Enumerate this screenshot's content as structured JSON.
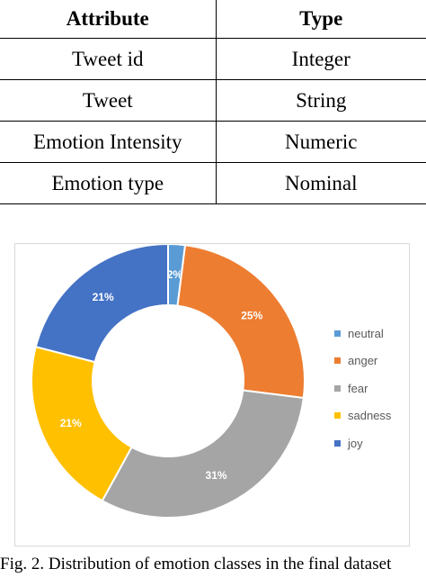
{
  "table": {
    "headers": [
      "Attribute",
      "Type"
    ],
    "rows": [
      [
        "Tweet id",
        "Integer"
      ],
      [
        "Tweet",
        "String"
      ],
      [
        "Emotion Intensity",
        "Numeric"
      ],
      [
        "Emotion type",
        "Nominal"
      ]
    ]
  },
  "chart_data": {
    "type": "pie",
    "donut": true,
    "legend_position": "right",
    "categories": [
      "neutral",
      "anger",
      "fear",
      "sadness",
      "joy"
    ],
    "values": [
      2,
      25,
      31,
      21,
      21
    ],
    "labels": [
      "2%",
      "25%",
      "31%",
      "21%",
      "21%"
    ],
    "colors": [
      "#5B9BD5",
      "#ED7D31",
      "#A5A5A5",
      "#FFC000",
      "#4472C4"
    ]
  },
  "caption": "Fig. 2. Distribution of emotion classes in the final dataset"
}
